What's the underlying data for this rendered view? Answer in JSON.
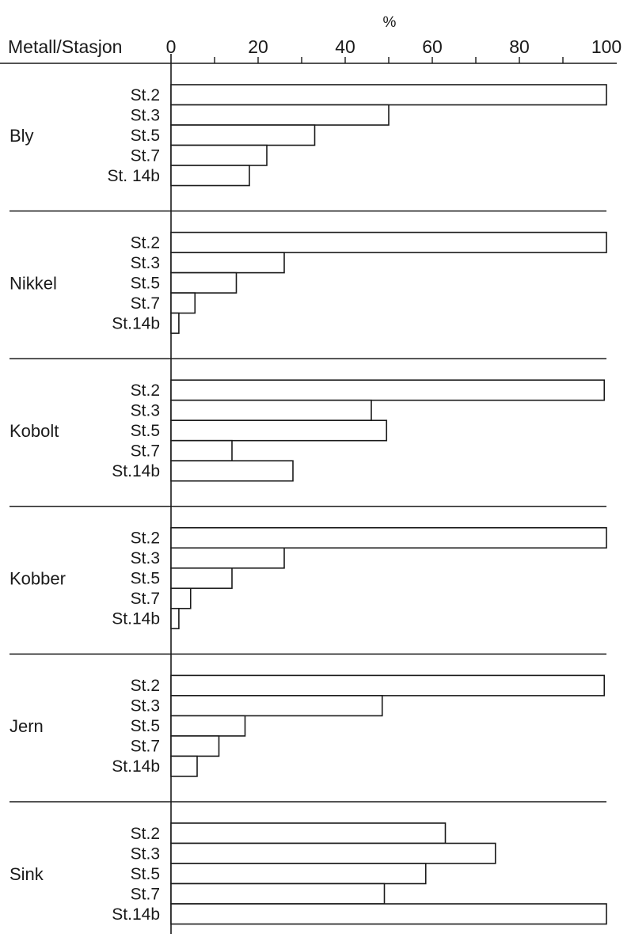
{
  "chart_data": {
    "type": "bar",
    "orientation": "horizontal",
    "unit_label": "%",
    "header_label": "Metall/Stasjon",
    "xlim": [
      0,
      100
    ],
    "x_ticks": [
      "0",
      "20",
      "40",
      "60",
      "80",
      "100"
    ],
    "grid": false,
    "colors": {
      "bar_fill": "#ffffff",
      "bar_stroke": "#1a1a1a",
      "line": "#1a1a1a"
    },
    "groups": [
      {
        "name": "Bly",
        "stations": [
          "St.2",
          "St.3",
          "St.5",
          "St.7",
          "St. 14b"
        ],
        "values": [
          100,
          50,
          33,
          22,
          18
        ]
      },
      {
        "name": "Nikkel",
        "stations": [
          "St.2",
          "St.3",
          "St.5",
          "St.7",
          "St.14b"
        ],
        "values": [
          100,
          26,
          15,
          5.5,
          1.8
        ]
      },
      {
        "name": "Kobolt",
        "stations": [
          "St.2",
          "St.3",
          "St.5",
          "St.7",
          "St.14b"
        ],
        "values": [
          99.5,
          46,
          49.5,
          14,
          28
        ]
      },
      {
        "name": "Kobber",
        "stations": [
          "St.2",
          "St.3",
          "St.5",
          "St.7",
          "St.14b"
        ],
        "values": [
          100,
          26,
          14,
          4.5,
          1.8
        ]
      },
      {
        "name": "Jern",
        "stations": [
          "St.2",
          "St.3",
          "St.5",
          "St.7",
          "St.14b"
        ],
        "values": [
          99.5,
          48.5,
          17,
          11,
          6
        ]
      },
      {
        "name": "Sink",
        "stations": [
          "St.2",
          "St.3",
          "St.5",
          "St.7",
          "St.14b"
        ],
        "values": [
          63,
          74.5,
          58.5,
          49,
          100
        ]
      }
    ]
  }
}
